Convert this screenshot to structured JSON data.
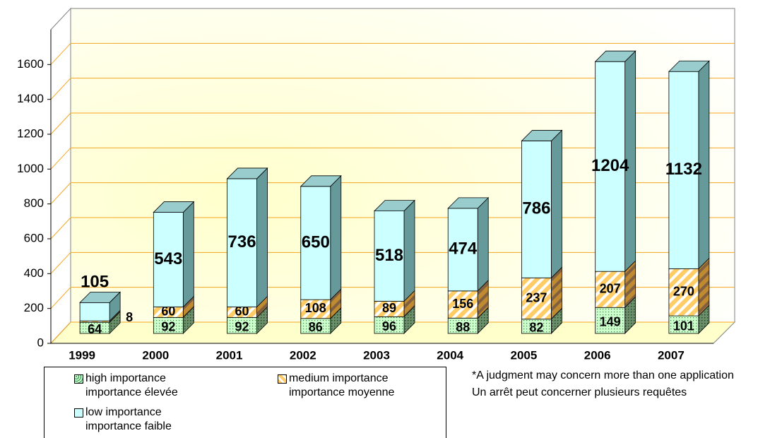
{
  "chart_data": {
    "type": "bar3d_stacked",
    "categories": [
      "1999",
      "2000",
      "2001",
      "2002",
      "2003",
      "2004",
      "2005",
      "2006",
      "2007"
    ],
    "series": [
      {
        "name": "high importance\nimportance élevée",
        "color": "#ccffcc",
        "values": [
          64,
          92,
          92,
          86,
          96,
          88,
          82,
          149,
          101
        ]
      },
      {
        "name": "medium importance\nimportance moyenne",
        "color": "#ffcc66",
        "values": [
          8,
          60,
          60,
          108,
          89,
          156,
          237,
          207,
          270
        ]
      },
      {
        "name": "low importance\nimportance faible",
        "color": "#ccffff",
        "values": [
          105,
          543,
          736,
          650,
          518,
          474,
          786,
          1204,
          1132
        ]
      }
    ],
    "ylim": [
      0,
      1800
    ],
    "yticks": [
      0,
      200,
      400,
      600,
      800,
      1000,
      1200,
      1400,
      1600
    ],
    "grid": true,
    "annotations": [
      "*A judgment may concern more than one application",
      "Un arrêt peut concerner plusieurs requêtes"
    ]
  }
}
